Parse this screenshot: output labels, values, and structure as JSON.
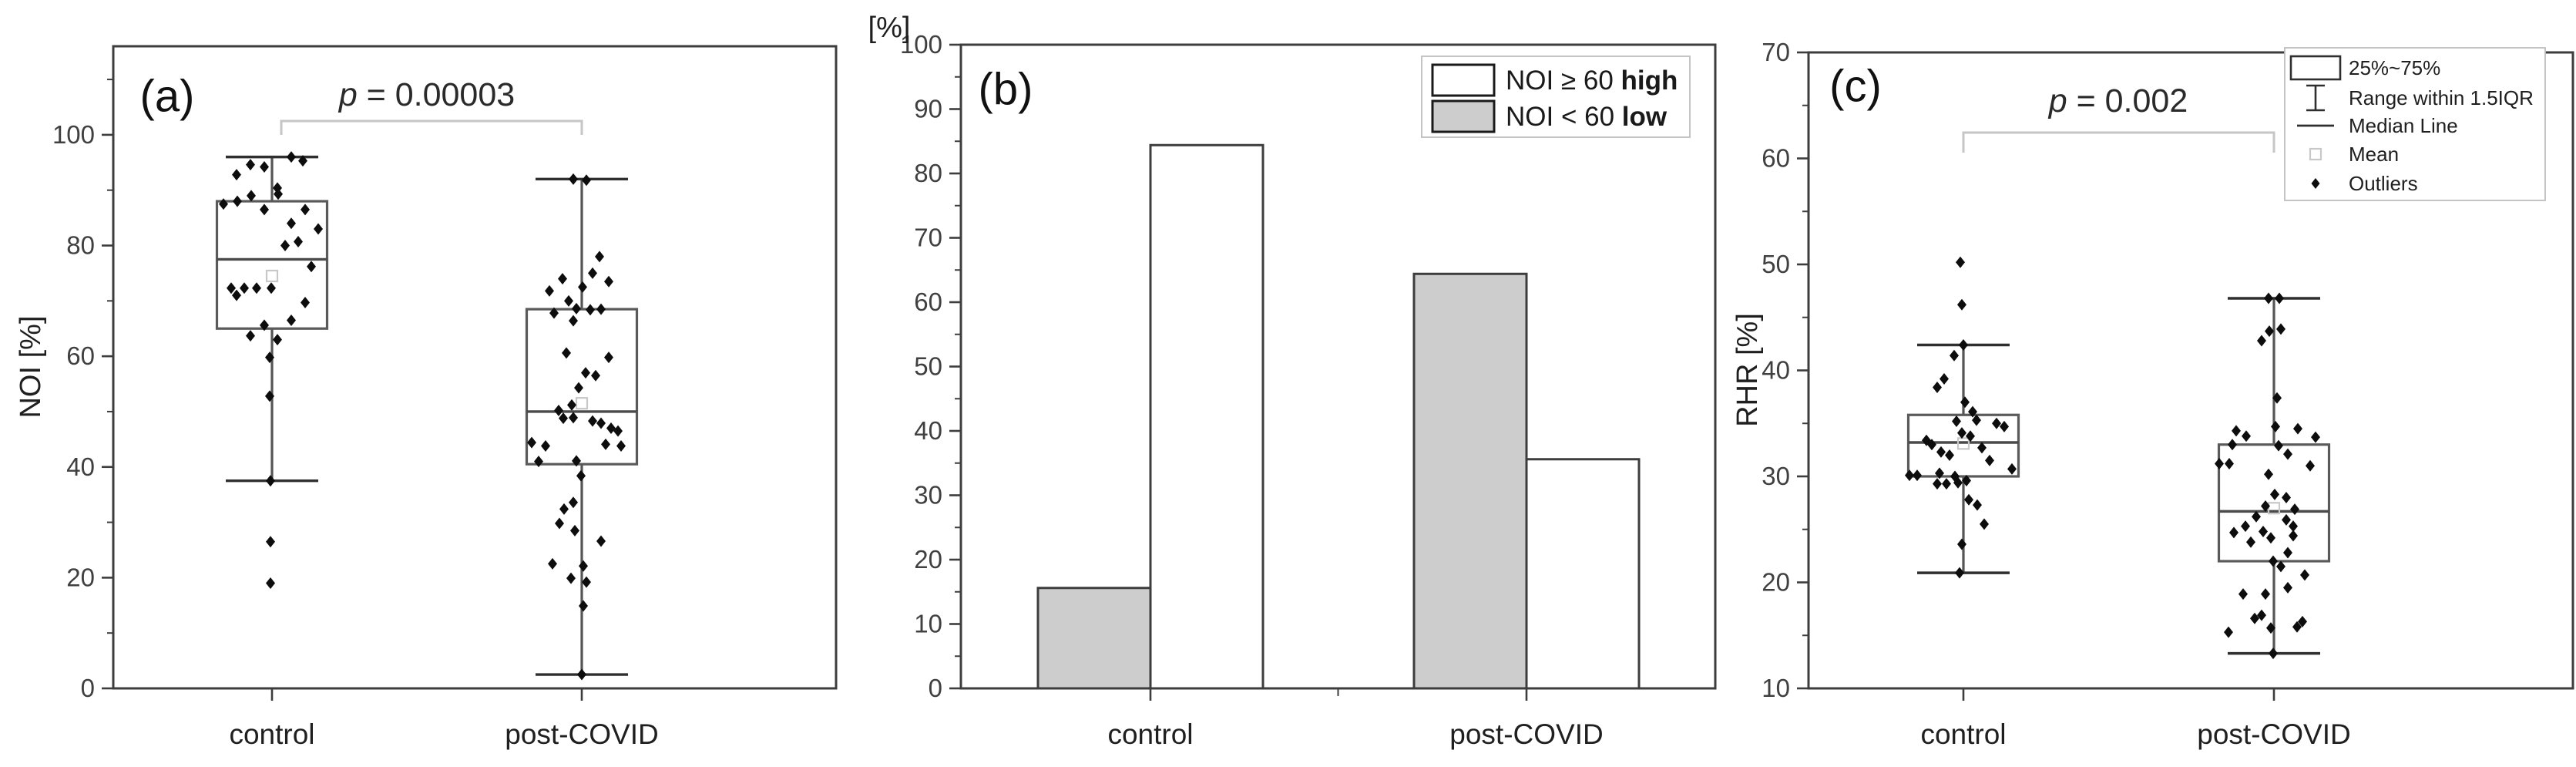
{
  "styles": {
    "frame_color": "#3d3d3d",
    "box_stroke": "#5a5a5a",
    "median_color": "#4a4a4a",
    "whisker_color": "#555555",
    "cap_color": "#2f2f2f",
    "point_color": "#0d0d0d",
    "mean_marker_color": "#c8c8c8",
    "bracket_color": "#c6c6c6",
    "gray_fill": "#cdcdcd",
    "tick_text_color": "#404040",
    "text_color": "#1f1f1f",
    "legend_border_color": "#bdbdbd"
  },
  "chart_data": [
    {
      "id": "a",
      "type": "box-scatter",
      "panel_label": "(a)",
      "ylabel": "NOI [%]",
      "ylim": [
        0,
        116
      ],
      "yticks": [
        0,
        20,
        40,
        60,
        80,
        100
      ],
      "minor_tick_step": 10,
      "categories": [
        "control",
        "post-COVID"
      ],
      "grid": false,
      "legend_position": "none",
      "p_annotation": {
        "italic": "p",
        "rest": " = 0.00003"
      },
      "groups": [
        {
          "category": "control",
          "box": {
            "q1": 65,
            "median": 77.5,
            "q3": 88,
            "whisker_low": 37.5,
            "whisker_high": 96,
            "mean": 74.5
          },
          "points": [
            [
              25,
              96
            ],
            [
              40,
              95.3
            ],
            [
              -28,
              94.6
            ],
            [
              -10,
              94.2
            ],
            [
              -46,
              92.8
            ],
            [
              7,
              90.4
            ],
            [
              8,
              89.3
            ],
            [
              -27,
              89
            ],
            [
              -63,
              87.5
            ],
            [
              -45,
              88
            ],
            [
              -10,
              86.5
            ],
            [
              43,
              86.5
            ],
            [
              25,
              84
            ],
            [
              60,
              83
            ],
            [
              34,
              80.7
            ],
            [
              17,
              80
            ],
            [
              51,
              76.2
            ],
            [
              -53,
              72.3
            ],
            [
              -36,
              72.3
            ],
            [
              -46,
              71
            ],
            [
              -20,
              72.3
            ],
            [
              -1,
              72.3
            ],
            [
              43,
              69.7
            ],
            [
              25,
              66.5
            ],
            [
              -10,
              65.6
            ],
            [
              -28,
              63.7
            ],
            [
              7,
              63
            ],
            [
              -3,
              59.8
            ],
            [
              -3,
              52.8
            ],
            [
              -2,
              37.5
            ],
            [
              -2,
              26.5
            ],
            [
              -2,
              19
            ]
          ]
        },
        {
          "category": "post-COVID",
          "box": {
            "q1": 40.5,
            "median": 50,
            "q3": 68.5,
            "whisker_low": 2.5,
            "whisker_high": 92,
            "mean": 51.5
          },
          "points": [
            [
              -11,
              92
            ],
            [
              6,
              91.8
            ],
            [
              23,
              78
            ],
            [
              14,
              75
            ],
            [
              -25,
              74
            ],
            [
              35,
              73.5
            ],
            [
              1,
              72.5
            ],
            [
              -42,
              71.8
            ],
            [
              -17,
              70
            ],
            [
              -7,
              68.6
            ],
            [
              11,
              68.4
            ],
            [
              25,
              68.5
            ],
            [
              -36,
              67.8
            ],
            [
              -11,
              66.4
            ],
            [
              -20,
              60.6
            ],
            [
              35,
              59.8
            ],
            [
              5,
              57
            ],
            [
              18,
              56.5
            ],
            [
              -4,
              54.3
            ],
            [
              -13,
              51.2
            ],
            [
              -30,
              50.2
            ],
            [
              -24,
              48.8
            ],
            [
              -11,
              48.9
            ],
            [
              14,
              48.3
            ],
            [
              25,
              47.9
            ],
            [
              38,
              47
            ],
            [
              47,
              46.5
            ],
            [
              -65,
              44.4
            ],
            [
              -47,
              43.8
            ],
            [
              31,
              44.1
            ],
            [
              51,
              43.8
            ],
            [
              -56,
              41
            ],
            [
              -7,
              41.1
            ],
            [
              -1,
              38.4
            ],
            [
              -11,
              33.6
            ],
            [
              -23,
              32.4
            ],
            [
              -29,
              29.8
            ],
            [
              -9,
              28.5
            ],
            [
              25,
              26.6
            ],
            [
              -38,
              22.5
            ],
            [
              2,
              22.1
            ],
            [
              -14,
              19.9
            ],
            [
              6,
              19.2
            ],
            [
              2,
              14.9
            ],
            [
              0,
              2.5
            ]
          ]
        }
      ]
    },
    {
      "id": "b",
      "type": "bar",
      "panel_label": "(b)",
      "ylabel": "[%]",
      "ylim": [
        0,
        100
      ],
      "yticks": [
        0,
        10,
        20,
        30,
        40,
        50,
        60,
        70,
        80,
        90,
        100
      ],
      "minor_tick_step": 5,
      "categories": [
        "control",
        "post-COVID"
      ],
      "grid": false,
      "series": [
        {
          "name": "NOI < 60 low",
          "fill": "#cdcdcd",
          "values": [
            15.6,
            64.4
          ]
        },
        {
          "name": "NOI ≥ 60 high",
          "fill": "#ffffff",
          "values": [
            84.4,
            35.6
          ]
        }
      ],
      "legend_position": "top-right",
      "legend": [
        {
          "swatch": "#ffffff",
          "text": "NOI ≥ 60 ",
          "bold": "high"
        },
        {
          "swatch": "#cdcdcd",
          "text": "NOI < 60 ",
          "bold": "low"
        }
      ]
    },
    {
      "id": "c",
      "type": "box-scatter",
      "panel_label": "(c)",
      "ylabel": "RHR [%]",
      "ylim": [
        10,
        70
      ],
      "yticks": [
        10,
        20,
        30,
        40,
        50,
        60,
        70
      ],
      "minor_tick_step": 5,
      "categories": [
        "control",
        "post-COVID"
      ],
      "grid": false,
      "p_annotation": {
        "italic": "p",
        "rest": " = 0.002"
      },
      "legend_position": "top-right",
      "legend_keys": [
        {
          "icon": "box-icon",
          "label": "25%~75%"
        },
        {
          "icon": "whisker-icon",
          "label": "Range within 1.5IQR"
        },
        {
          "icon": "median-line-icon",
          "label": "Median Line"
        },
        {
          "icon": "mean-square-icon",
          "label": "Mean"
        },
        {
          "icon": "outlier-diamond-icon",
          "label": "Outliers"
        }
      ],
      "groups": [
        {
          "category": "control",
          "box": {
            "q1": 30,
            "median": 33.2,
            "q3": 35.8,
            "whisker_low": 20.9,
            "whisker_high": 42.4,
            "mean": 33.1
          },
          "points": [
            [
              -4,
              50.2
            ],
            [
              -2,
              46.2
            ],
            [
              0,
              42.4
            ],
            [
              -12,
              41.4
            ],
            [
              -25,
              39.2
            ],
            [
              -34,
              38.4
            ],
            [
              2,
              37
            ],
            [
              12,
              36.1
            ],
            [
              17,
              35.3
            ],
            [
              -9,
              35.2
            ],
            [
              43,
              35
            ],
            [
              53,
              34.7
            ],
            [
              -2,
              34.1
            ],
            [
              9,
              33.8
            ],
            [
              -48,
              33.4
            ],
            [
              -41,
              33
            ],
            [
              24,
              32.7
            ],
            [
              -29,
              32.3
            ],
            [
              -18,
              32
            ],
            [
              34,
              31.5
            ],
            [
              63,
              30.7
            ],
            [
              -70,
              30.1
            ],
            [
              -60,
              30.1
            ],
            [
              -31,
              30.3
            ],
            [
              -11,
              30
            ],
            [
              -34,
              29.3
            ],
            [
              -22,
              29.3
            ],
            [
              -7,
              29.4
            ],
            [
              4,
              29.6
            ],
            [
              7,
              27.8
            ],
            [
              18,
              27.3
            ],
            [
              27,
              25.5
            ],
            [
              -2,
              23.6
            ],
            [
              -5,
              20.9
            ]
          ]
        },
        {
          "category": "post-COVID",
          "box": {
            "q1": 22,
            "median": 26.7,
            "q3": 33,
            "whisker_low": 13.3,
            "whisker_high": 46.8,
            "mean": 27
          },
          "points": [
            [
              -7,
              46.8
            ],
            [
              7,
              46.8
            ],
            [
              9,
              43.9
            ],
            [
              -6,
              43.7
            ],
            [
              -16,
              42.8
            ],
            [
              4,
              37.4
            ],
            [
              2,
              34.7
            ],
            [
              -49,
              34.3
            ],
            [
              31,
              34.5
            ],
            [
              -36,
              33.8
            ],
            [
              54,
              33.7
            ],
            [
              -54,
              33
            ],
            [
              6,
              32.9
            ],
            [
              18,
              32.1
            ],
            [
              -71,
              31.2
            ],
            [
              -58,
              31.2
            ],
            [
              47,
              31
            ],
            [
              -7,
              30.2
            ],
            [
              1,
              28.3
            ],
            [
              16,
              28
            ],
            [
              -11,
              27.2
            ],
            [
              27,
              26.9
            ],
            [
              -23,
              26.2
            ],
            [
              16,
              25.9
            ],
            [
              25,
              25.3
            ],
            [
              25,
              24.4
            ],
            [
              -37,
              25.3
            ],
            [
              -52,
              24.7
            ],
            [
              -14,
              24.8
            ],
            [
              -30,
              23.8
            ],
            [
              -4,
              24.2
            ],
            [
              18,
              22.8
            ],
            [
              -1,
              22
            ],
            [
              9,
              21.5
            ],
            [
              40,
              20.7
            ],
            [
              18,
              19.5
            ],
            [
              -40,
              18.9
            ],
            [
              -11,
              18.9
            ],
            [
              -25,
              16.6
            ],
            [
              -16,
              16.9
            ],
            [
              -4,
              15.7
            ],
            [
              30,
              15.8
            ],
            [
              37,
              16.3
            ],
            [
              -59,
              15.3
            ],
            [
              -1,
              13.3
            ]
          ]
        }
      ]
    }
  ]
}
